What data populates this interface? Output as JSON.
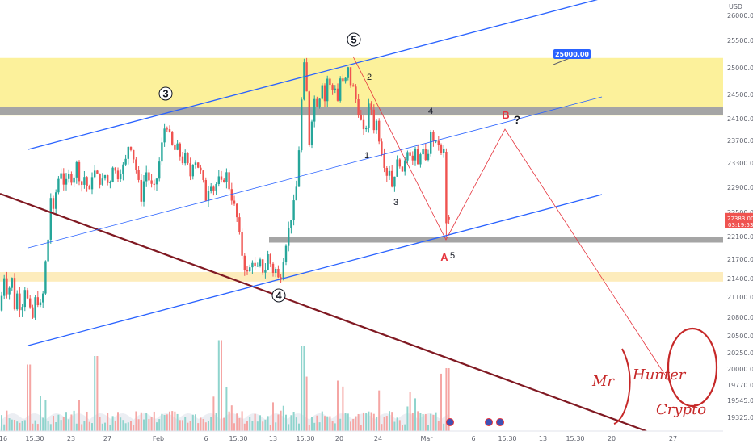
{
  "chart_data": {
    "type": "candlestick",
    "currency": "USD",
    "y_ticks": [
      "26000.00",
      "25500.00",
      "25000.00",
      "24500.00",
      "24100.00",
      "23700.00",
      "23300.00",
      "22900.00",
      "22500.00",
      "22100.00",
      "21700.00",
      "21400.00",
      "21100.00",
      "20800.00",
      "20500.00",
      "20250.00",
      "20000.00",
      "19770.00",
      "19545.00",
      "19325.00"
    ],
    "y_range": [
      19200,
      26200
    ],
    "x_ticks": [
      "16",
      "15:30",
      "23",
      "27",
      "Feb",
      "6",
      "15:30",
      "13",
      "15:30",
      "20",
      "24",
      "Mar",
      "6",
      "15:30",
      "13",
      "15:30",
      "20",
      "27"
    ],
    "current_price": "22383.00",
    "countdown": "03:19:53",
    "target_label": "25000.00",
    "zones": [
      {
        "name": "supply",
        "from": 24150,
        "to": 25180,
        "color": "#fcee8a"
      },
      {
        "name": "support",
        "from": 21350,
        "to": 21500,
        "color": "#fde9b0"
      }
    ],
    "levels": [
      {
        "name": "resistance",
        "price": 24220,
        "color": "#9e9e9e"
      },
      {
        "name": "support",
        "price": 22050,
        "color": "#9e9e9e"
      }
    ],
    "price_series_anchors": [
      [
        0,
        20900
      ],
      [
        5,
        21450
      ],
      [
        9,
        21150
      ],
      [
        15,
        21400
      ],
      [
        18,
        20950
      ],
      [
        22,
        21200
      ],
      [
        26,
        20800
      ],
      [
        30,
        21300
      ],
      [
        35,
        21000
      ],
      [
        40,
        20750
      ],
      [
        44,
        21100
      ],
      [
        48,
        21000
      ],
      [
        52,
        20950
      ],
      [
        56,
        21600
      ],
      [
        60,
        22100
      ],
      [
        62,
        22800
      ],
      [
        66,
        22500
      ],
      [
        70,
        22900
      ],
      [
        75,
        23200
      ],
      [
        80,
        22900
      ],
      [
        85,
        23100
      ],
      [
        90,
        23000
      ],
      [
        95,
        23300
      ],
      [
        100,
        22900
      ],
      [
        105,
        23100
      ],
      [
        110,
        22750
      ],
      [
        115,
        23200
      ],
      [
        120,
        23100
      ],
      [
        125,
        22950
      ],
      [
        130,
        23100
      ],
      [
        135,
        22900
      ],
      [
        140,
        23300
      ],
      [
        145,
        23050
      ],
      [
        150,
        23200
      ],
      [
        155,
        23300
      ],
      [
        160,
        23700
      ],
      [
        165,
        23400
      ],
      [
        170,
        23100
      ],
      [
        175,
        22700
      ],
      [
        180,
        23200
      ],
      [
        185,
        23000
      ],
      [
        190,
        22850
      ],
      [
        195,
        23100
      ],
      [
        200,
        23600
      ],
      [
        205,
        24050
      ],
      [
        210,
        23800
      ],
      [
        215,
        23500
      ],
      [
        220,
        23600
      ],
      [
        225,
        23300
      ],
      [
        230,
        23450
      ],
      [
        235,
        23050
      ],
      [
        240,
        23400
      ],
      [
        245,
        23250
      ],
      [
        250,
        23100
      ],
      [
        255,
        22700
      ],
      [
        260,
        23000
      ],
      [
        265,
        22850
      ],
      [
        270,
        23050
      ],
      [
        275,
        22950
      ],
      [
        280,
        23150
      ],
      [
        285,
        22800
      ],
      [
        290,
        22600
      ],
      [
        295,
        22300
      ],
      [
        298,
        21900
      ],
      [
        302,
        21600
      ],
      [
        307,
        21450
      ],
      [
        312,
        21700
      ],
      [
        317,
        21500
      ],
      [
        322,
        21650
      ],
      [
        327,
        21450
      ],
      [
        332,
        21800
      ],
      [
        337,
        21500
      ],
      [
        342,
        21550
      ],
      [
        346,
        21300
      ],
      [
        350,
        21650
      ],
      [
        356,
        22150
      ],
      [
        362,
        22500
      ],
      [
        368,
        23000
      ],
      [
        372,
        24100
      ],
      [
        376,
        25100
      ],
      [
        379,
        24700
      ],
      [
        383,
        23600
      ],
      [
        386,
        24100
      ],
      [
        390,
        24500
      ],
      [
        394,
        24250
      ],
      [
        398,
        24800
      ],
      [
        402,
        24400
      ],
      [
        406,
        24900
      ],
      [
        410,
        24500
      ],
      [
        414,
        24700
      ],
      [
        418,
        24400
      ],
      [
        422,
        24900
      ],
      [
        426,
        24600
      ],
      [
        430,
        25050
      ],
      [
        434,
        24700
      ],
      [
        438,
        24600
      ],
      [
        442,
        24300
      ],
      [
        446,
        24100
      ],
      [
        450,
        23850
      ],
      [
        454,
        24000
      ],
      [
        458,
        24500
      ],
      [
        462,
        23900
      ],
      [
        466,
        24050
      ],
      [
        470,
        23650
      ],
      [
        474,
        23400
      ],
      [
        478,
        23100
      ],
      [
        482,
        23200
      ],
      [
        486,
        22850
      ],
      [
        490,
        23300
      ],
      [
        494,
        23350
      ],
      [
        498,
        23100
      ],
      [
        502,
        23450
      ],
      [
        506,
        23600
      ],
      [
        510,
        23300
      ],
      [
        514,
        23500
      ],
      [
        518,
        23200
      ],
      [
        522,
        23700
      ],
      [
        526,
        23250
      ],
      [
        530,
        23500
      ],
      [
        534,
        23900
      ],
      [
        538,
        23600
      ],
      [
        542,
        23700
      ],
      [
        546,
        23450
      ],
      [
        550,
        23550
      ],
      [
        553,
        22300
      ],
      [
        556,
        22383
      ]
    ],
    "volume": {
      "y_max": 1.0
    },
    "wave_labels": [
      {
        "text": "3",
        "circled": true
      },
      {
        "text": "5",
        "circled": true
      },
      {
        "text": "4",
        "circled": true
      },
      {
        "text": "2",
        "circled": false
      },
      {
        "text": "1",
        "circled": false
      },
      {
        "text": "3",
        "circled": false
      },
      {
        "text": "4",
        "circled": false
      },
      {
        "text": "5",
        "circled": false
      }
    ],
    "projection_labels": {
      "a": "A",
      "b": "B",
      "q": "?"
    },
    "watermark": {
      "line1": "Mr",
      "line2": "Hunter",
      "line3": "Crypto"
    },
    "colors": {
      "up": "#26a69a",
      "down": "#ef5350",
      "channel": "#2962ff",
      "downtrend": "#801922",
      "projection": "#e5343d"
    }
  }
}
